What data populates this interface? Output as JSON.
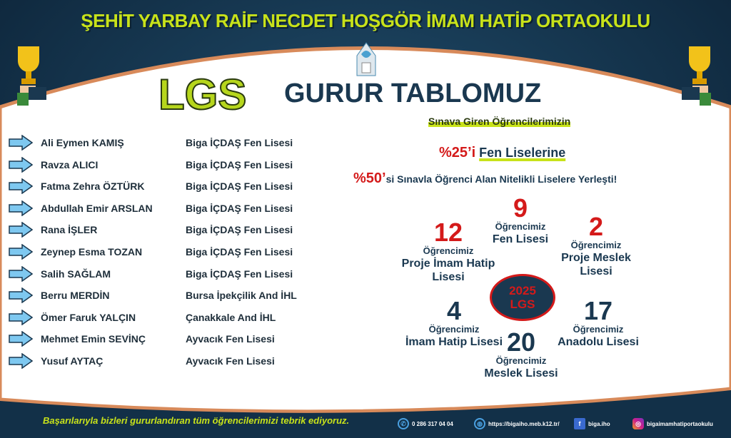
{
  "header": {
    "school_name": "ŞEHİT YARBAY RAİF NECDET HOŞGÖR İMAM HATİP ORTAOKULU",
    "lgs": "LGS",
    "subtitle": "GURUR TABLOMUZ"
  },
  "students": [
    {
      "name": "Ali Eymen KAMIŞ",
      "school": "Biga İÇDAŞ Fen Lisesi"
    },
    {
      "name": "Ravza ALICI",
      "school": "Biga İÇDAŞ Fen Lisesi"
    },
    {
      "name": "Fatma Zehra ÖZTÜRK",
      "school": "Biga İÇDAŞ Fen Lisesi"
    },
    {
      "name": "Abdullah Emir ARSLAN",
      "school": "Biga İÇDAŞ Fen Lisesi"
    },
    {
      "name": "Rana İŞLER",
      "school": "Biga İÇDAŞ Fen Lisesi"
    },
    {
      "name": "Zeynep Esma TOZAN",
      "school": "Biga İÇDAŞ Fen Lisesi"
    },
    {
      "name": "Salih SAĞLAM",
      "school": "Biga İÇDAŞ Fen Lisesi"
    },
    {
      "name": "Berru MERDİN",
      "school": "Bursa İpekçilik And İHL"
    },
    {
      "name": "Ömer Faruk YALÇIN",
      "school": "Çanakkale And İHL"
    },
    {
      "name": "Mehmet Emin SEVİNÇ",
      "school": "Ayvacık Fen Lisesi"
    },
    {
      "name": "Yusuf AYTAÇ",
      "school": "Ayvacık Fen Lisesi"
    }
  ],
  "summary": {
    "intro": "Sınava Giren Öğrencilerimizin",
    "pct1": "%25’i",
    "line1": "Fen Liselerine",
    "pct2": "%50’",
    "line2": "si Sınavla Öğrenci Alan Nitelikli Liselere Yerleşti!"
  },
  "stats": [
    {
      "count": "12",
      "label": "Öğrencimiz",
      "kind": "Proje İmam Hatip Lisesi"
    },
    {
      "count": "9",
      "label": "Öğrencimiz",
      "kind": "Fen Lisesi"
    },
    {
      "count": "2",
      "label": "Öğrencimiz",
      "kind": "Proje Meslek Lisesi"
    },
    {
      "count": "4",
      "label": "Öğrencimiz",
      "kind": "İmam Hatip Lisesi"
    },
    {
      "count": "20",
      "label": "Öğrencimiz",
      "kind": "Meslek Lisesi"
    },
    {
      "count": "17",
      "label": "Öğrencimiz",
      "kind": "Anadolu Lisesi"
    }
  ],
  "badge": {
    "year": "2025",
    "text": "LGS"
  },
  "footer": {
    "message": "Başarılarıyla bizleri gururlandıran tüm öğrencilerimizi tebrik ediyoruz.",
    "phone": "0 286 317 04 04",
    "website": "https://bigaiho.meb.k12.tr/",
    "facebook": "biga.iho",
    "instagram": "bigaimamhatiportaokulu"
  },
  "colors": {
    "accent": "#c8e21a",
    "navy": "#1a3850",
    "red": "#d41a1a",
    "border": "#d88a5a"
  }
}
